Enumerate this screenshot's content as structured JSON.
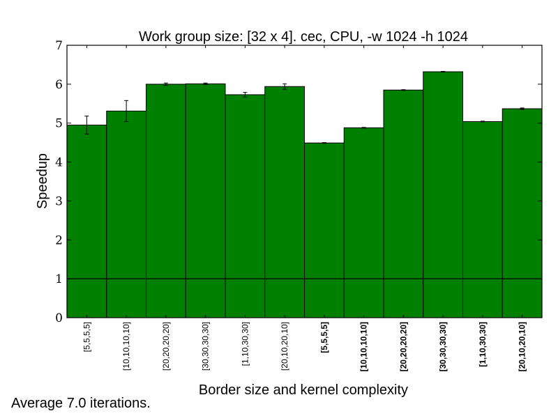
{
  "chart_data": {
    "type": "bar",
    "title": "Work group size: [32 x 4]. cec, CPU, -w 1024 -h 1024",
    "xlabel": "Border size and kernel complexity",
    "ylabel": "Speedup",
    "ylim": [
      0,
      7
    ],
    "yticks": [
      "0",
      "1",
      "2",
      "3",
      "4",
      "5",
      "6",
      "7"
    ],
    "reference_line": 1,
    "bar_color": "#008000",
    "grid": false,
    "categories": [
      "[5,5,5,5]",
      "[10,10,10,10]",
      "[20,20,20,20]",
      "[30,30,30,30]",
      "[1,10,30,30]",
      "[20,10,20,10]",
      "[5,5,5,5]",
      "[10,10,10,10]",
      "[20,20,20,20]",
      "[30,30,30,30]",
      "[1,10,30,30]",
      "[20,10,20,10]"
    ],
    "bold_categories": [
      false,
      false,
      false,
      false,
      false,
      false,
      true,
      true,
      true,
      true,
      true,
      true
    ],
    "values": [
      4.95,
      5.31,
      6.0,
      6.01,
      5.73,
      5.94,
      4.49,
      4.88,
      5.85,
      6.32,
      5.04,
      5.37
    ],
    "errors": [
      0.23,
      0.27,
      0.03,
      0.02,
      0.06,
      0.07,
      0.01,
      0.01,
      0.01,
      0.01,
      0.01,
      0.02
    ]
  },
  "footnote": "Average 7.0 iterations."
}
